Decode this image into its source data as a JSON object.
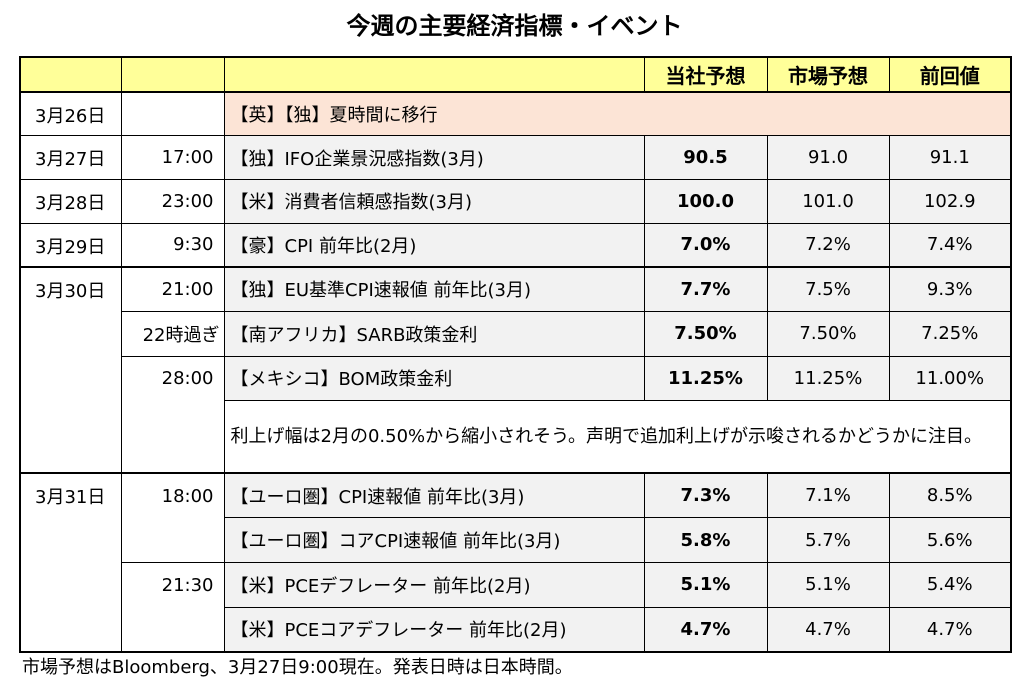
{
  "title": "今週の主要経済指標・イベント",
  "headers": {
    "forecast_own": "当社予想",
    "forecast_market": "市場予想",
    "previous": "前回値"
  },
  "rows": [
    {
      "date": "3月26日",
      "time": "",
      "event": "【英】【独】夏時間に移行",
      "own": "",
      "market": "",
      "prev": ""
    },
    {
      "date": "3月27日",
      "time": "17:00",
      "event": "【独】IFO企業景況感指数(3月)",
      "own": "90.5",
      "market": "91.0",
      "prev": "91.1"
    },
    {
      "date": "3月28日",
      "time": "23:00",
      "event": "【米】消費者信頼感指数(3月)",
      "own": "100.0",
      "market": "101.0",
      "prev": "102.9"
    },
    {
      "date": "3月29日",
      "time": "9:30",
      "event": "【豪】CPI 前年比(2月)",
      "own": "7.0%",
      "market": "7.2%",
      "prev": "7.4%"
    },
    {
      "date": "3月30日",
      "time": "21:00",
      "event": "【独】EU基準CPI速報値 前年比(3月)",
      "own": "7.7%",
      "market": "7.5%",
      "prev": "9.3%"
    },
    {
      "date": "",
      "time": "22時過ぎ",
      "event": "【南アフリカ】SARB政策金利",
      "own": "7.50%",
      "market": "7.50%",
      "prev": "7.25%"
    },
    {
      "date": "",
      "time": "28:00",
      "event": "【メキシコ】BOM政策金利",
      "own": "11.25%",
      "market": "11.25%",
      "prev": "11.00%"
    },
    {
      "date": "3月31日",
      "time": "18:00",
      "event": "【ユーロ圏】CPI速報値 前年比(3月)",
      "own": "7.3%",
      "market": "7.1%",
      "prev": "8.5%"
    },
    {
      "date": "",
      "time": "",
      "event": "【ユーロ圏】コアCPI速報値 前年比(3月)",
      "own": "5.8%",
      "market": "5.7%",
      "prev": "5.6%"
    },
    {
      "date": "",
      "time": "21:30",
      "event": "【米】PCEデフレーター 前年比(2月)",
      "own": "5.1%",
      "market": "5.1%",
      "prev": "5.4%"
    },
    {
      "date": "",
      "time": "",
      "event": "【米】PCEコアデフレーター 前年比(2月)",
      "own": "4.7%",
      "market": "4.7%",
      "prev": "4.7%"
    }
  ],
  "note": "利上げ幅は2月の0.50%から縮小されそう。声明で追加利上げが示唆されるかどうかに注目。",
  "footer": "市場予想はBloomberg、3月27日9:00現在。発表日時は日本時間。"
}
